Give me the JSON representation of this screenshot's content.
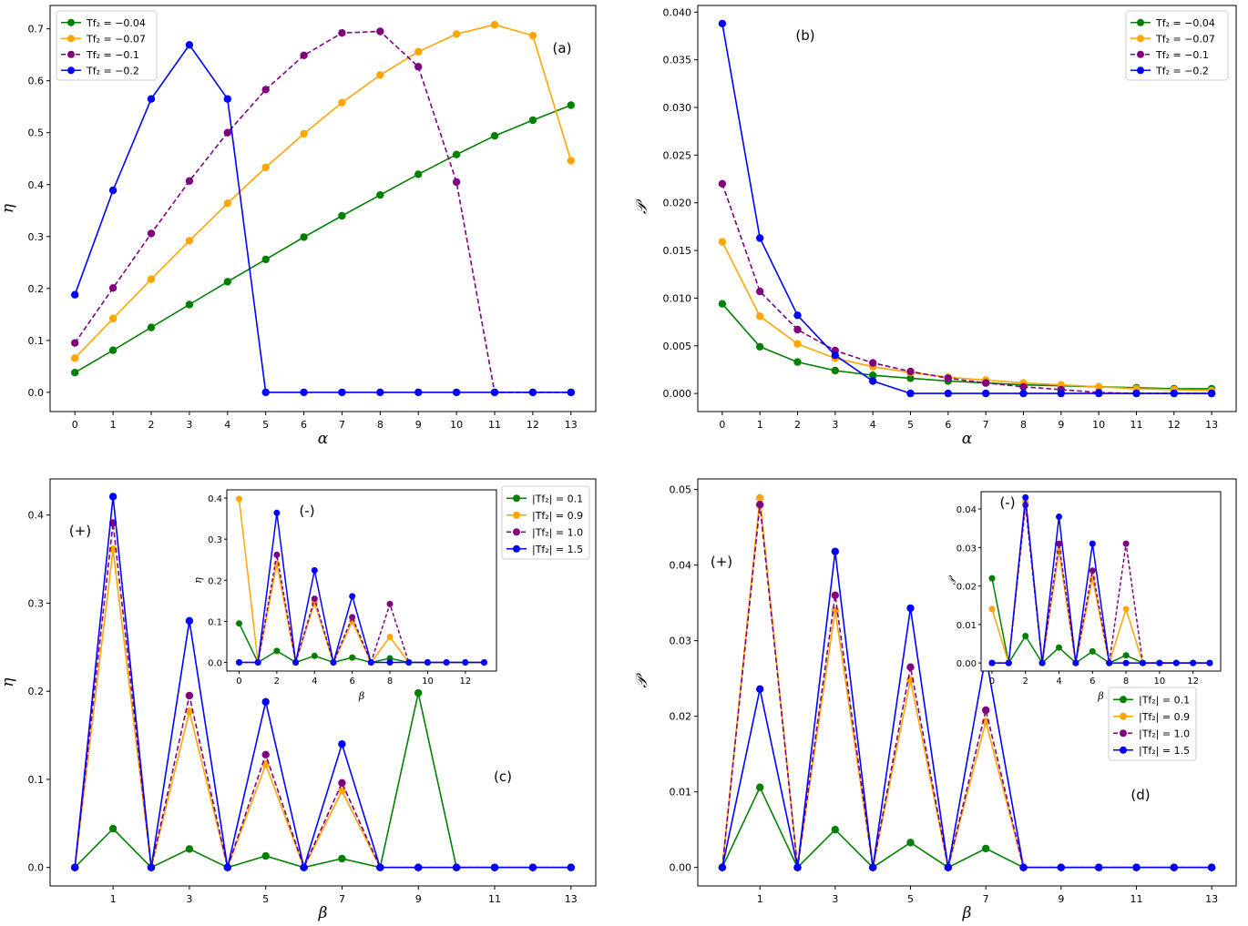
{
  "chart_data": [
    {
      "id": "a",
      "type": "line",
      "annotation": "(a)",
      "xlabel": "α",
      "ylabel": "η",
      "xlim": [
        -0.65,
        13.65
      ],
      "ylim": [
        -0.037,
        0.745
      ],
      "xticks": [
        0,
        1,
        2,
        3,
        4,
        5,
        6,
        7,
        8,
        9,
        10,
        11,
        12,
        13
      ],
      "yticks": [
        0.0,
        0.1,
        0.2,
        0.3,
        0.4,
        0.5,
        0.6,
        0.7
      ],
      "ytick_labels": [
        "0.0",
        "0.1",
        "0.2",
        "0.3",
        "0.4",
        "0.5",
        "0.6",
        "0.7"
      ],
      "legend": "top-left",
      "series": [
        {
          "name": "Tf₂ = −0.04",
          "color": "#008000",
          "dash": false,
          "x": [
            0,
            1,
            2,
            3,
            4,
            5,
            6,
            7,
            8,
            9,
            10,
            11,
            12,
            13
          ],
          "y": [
            0.038,
            0.081,
            0.125,
            0.169,
            0.213,
            0.256,
            0.299,
            0.34,
            0.38,
            0.42,
            0.458,
            0.494,
            0.524,
            0.553
          ]
        },
        {
          "name": "Tf₂ = −0.07",
          "color": "#ffa500",
          "dash": false,
          "x": [
            0,
            1,
            2,
            3,
            4,
            5,
            6,
            7,
            8,
            9,
            10,
            11,
            12,
            13
          ],
          "y": [
            0.066,
            0.142,
            0.218,
            0.292,
            0.364,
            0.433,
            0.498,
            0.558,
            0.611,
            0.656,
            0.69,
            0.708,
            0.687,
            0.446
          ]
        },
        {
          "name": "Tf₂ = −0.1",
          "color": "#800080",
          "dash": true,
          "x": [
            0,
            1,
            2,
            3,
            4,
            5,
            6,
            7,
            8,
            9,
            10,
            11,
            12,
            13
          ],
          "y": [
            0.095,
            0.201,
            0.306,
            0.407,
            0.5,
            0.583,
            0.649,
            0.692,
            0.695,
            0.627,
            0.405,
            0.0,
            0.0,
            0.0
          ]
        },
        {
          "name": "Tf₂ = −0.2",
          "color": "#0000ff",
          "dash": false,
          "x": [
            0,
            1,
            2,
            3,
            4,
            5,
            6,
            7,
            8,
            9,
            10,
            11,
            12,
            13
          ],
          "y": [
            0.188,
            0.389,
            0.565,
            0.669,
            0.565,
            0.0,
            0.0,
            0.0,
            0.0,
            0.0,
            0.0,
            0.0,
            0.0,
            0.0
          ]
        }
      ]
    },
    {
      "id": "b",
      "type": "line",
      "annotation": "(b)",
      "xlabel": "α",
      "ylabel": "𝒫",
      "xlim": [
        -0.65,
        13.65
      ],
      "ylim": [
        -0.0019,
        0.0407
      ],
      "xticks": [
        0,
        1,
        2,
        3,
        4,
        5,
        6,
        7,
        8,
        9,
        10,
        11,
        12,
        13
      ],
      "yticks": [
        0.0,
        0.005,
        0.01,
        0.015,
        0.02,
        0.025,
        0.03,
        0.035,
        0.04
      ],
      "ytick_labels": [
        "0.000",
        "0.005",
        "0.010",
        "0.015",
        "0.020",
        "0.025",
        "0.030",
        "0.035",
        "0.040"
      ],
      "legend": "top-right",
      "series": [
        {
          "name": "Tf₂ = −0.04",
          "color": "#008000",
          "dash": false,
          "x": [
            0,
            1,
            2,
            3,
            4,
            5,
            6,
            7,
            8,
            9,
            10,
            11,
            12,
            13
          ],
          "y": [
            0.0094,
            0.0049,
            0.0033,
            0.0024,
            0.0019,
            0.0016,
            0.0013,
            0.0011,
            0.0009,
            0.0008,
            0.0007,
            0.0006,
            0.0005,
            0.0005
          ]
        },
        {
          "name": "Tf₂ = −0.07",
          "color": "#ffa500",
          "dash": false,
          "x": [
            0,
            1,
            2,
            3,
            4,
            5,
            6,
            7,
            8,
            9,
            10,
            11,
            12,
            13
          ],
          "y": [
            0.0159,
            0.0081,
            0.0052,
            0.0037,
            0.0028,
            0.0022,
            0.0017,
            0.0014,
            0.0011,
            0.0009,
            0.0007,
            0.0005,
            0.0004,
            0.0003
          ]
        },
        {
          "name": "Tf₂ = −0.1",
          "color": "#800080",
          "dash": true,
          "x": [
            0,
            1,
            2,
            3,
            4,
            5,
            6,
            7,
            8,
            9,
            10,
            11,
            12,
            13
          ],
          "y": [
            0.022,
            0.0107,
            0.0067,
            0.0045,
            0.0032,
            0.0023,
            0.0016,
            0.0011,
            0.0007,
            0.0004,
            0.0001,
            0.0,
            0.0,
            0.0
          ]
        },
        {
          "name": "Tf₂ = −0.2",
          "color": "#0000ff",
          "dash": false,
          "x": [
            0,
            1,
            2,
            3,
            4,
            5,
            6,
            7,
            8,
            9,
            10,
            11,
            12,
            13
          ],
          "y": [
            0.0388,
            0.0163,
            0.0082,
            0.004,
            0.0013,
            0.0,
            0.0,
            0.0,
            0.0,
            0.0,
            0.0,
            0.0,
            0.0,
            0.0
          ]
        }
      ]
    },
    {
      "id": "c",
      "type": "line",
      "annotation": "(c)",
      "annotation2": "(+)",
      "xlabel": "β",
      "ylabel": "η",
      "xlim": [
        -0.65,
        13.65
      ],
      "ylim": [
        -0.021,
        0.441
      ],
      "xticks": [
        1,
        3,
        5,
        7,
        9,
        11,
        13
      ],
      "yticks": [
        0.0,
        0.1,
        0.2,
        0.3,
        0.4
      ],
      "ytick_labels": [
        "0.0",
        "0.1",
        "0.2",
        "0.3",
        "0.4"
      ],
      "legend": "top-right",
      "series": [
        {
          "name": "|Tf₂| = 0.1",
          "color": "#008000",
          "dash": false,
          "x": [
            0,
            1,
            2,
            3,
            4,
            5,
            6,
            7,
            8,
            9,
            10,
            11,
            12,
            13
          ],
          "y": [
            0,
            0.044,
            0,
            0.021,
            0,
            0.013,
            0,
            0.01,
            0,
            0.198,
            0,
            0,
            0,
            0
          ]
        },
        {
          "name": "|Tf₂| = 0.9",
          "color": "#ffa500",
          "dash": false,
          "x": [
            0,
            1,
            2,
            3,
            4,
            5,
            6,
            7,
            8,
            9,
            10,
            11,
            12,
            13
          ],
          "y": [
            0,
            0.361,
            0,
            0.177,
            0,
            0.117,
            0,
            0.087,
            0,
            0,
            0,
            0,
            0,
            0
          ]
        },
        {
          "name": "|Tf₂| = 1.0",
          "color": "#800080",
          "dash": true,
          "x": [
            0,
            1,
            2,
            3,
            4,
            5,
            6,
            7,
            8,
            9,
            10,
            11,
            12,
            13
          ],
          "y": [
            0,
            0.391,
            0,
            0.195,
            0,
            0.128,
            0,
            0.096,
            0,
            0,
            0,
            0,
            0,
            0
          ]
        },
        {
          "name": "|Tf₂| = 1.5",
          "color": "#0000ff",
          "dash": false,
          "x": [
            0,
            1,
            2,
            3,
            4,
            5,
            6,
            7,
            8,
            9,
            10,
            11,
            12,
            13
          ],
          "y": [
            0,
            0.421,
            0,
            0.28,
            0,
            0.188,
            0,
            0.14,
            0,
            0,
            0,
            0,
            0,
            0
          ]
        }
      ],
      "inset": {
        "annotation": "(-)",
        "xlabel": "β",
        "ylabel": "η",
        "xlim": [
          -0.65,
          13.65
        ],
        "ylim": [
          -0.021,
          0.42
        ],
        "xticks": [
          0,
          2,
          4,
          6,
          8,
          10,
          12
        ],
        "yticks": [
          0.0,
          0.1,
          0.2,
          0.3,
          0.4
        ],
        "ytick_labels": [
          "0.0",
          "0.1",
          "0.2",
          "0.3",
          "0.4"
        ],
        "series": [
          {
            "color": "#008000",
            "dash": false,
            "x": [
              0,
              1,
              2,
              3,
              4,
              5,
              6,
              7,
              8,
              9,
              10,
              11,
              12,
              13
            ],
            "y": [
              0.095,
              0,
              0.028,
              0,
              0.016,
              0,
              0.012,
              0,
              0.01,
              0,
              0,
              0,
              0,
              0
            ]
          },
          {
            "color": "#ffa500",
            "dash": false,
            "x": [
              0,
              1,
              2,
              3,
              4,
              5,
              6,
              7,
              8,
              9,
              10,
              11,
              12,
              13
            ],
            "y": [
              0.398,
              0,
              0.24,
              0,
              0.145,
              0,
              0.1,
              0,
              0.062,
              0,
              0,
              0,
              0,
              0
            ]
          },
          {
            "color": "#800080",
            "dash": true,
            "x": [
              0,
              1,
              2,
              3,
              4,
              5,
              6,
              7,
              8,
              9,
              10,
              11,
              12,
              13
            ],
            "y": [
              0,
              0,
              0.262,
              0,
              0.155,
              0,
              0.11,
              0,
              0.142,
              0,
              0,
              0,
              0,
              0
            ]
          },
          {
            "color": "#0000ff",
            "dash": false,
            "x": [
              0,
              1,
              2,
              3,
              4,
              5,
              6,
              7,
              8,
              9,
              10,
              11,
              12,
              13
            ],
            "y": [
              0,
              0,
              0.364,
              0,
              0.224,
              0,
              0.161,
              0,
              0,
              0,
              0,
              0,
              0,
              0
            ]
          }
        ]
      }
    },
    {
      "id": "d",
      "type": "line",
      "annotation": "(d)",
      "annotation2": "(+)",
      "xlabel": "β",
      "ylabel": "𝒫",
      "xlim": [
        -0.65,
        13.65
      ],
      "ylim": [
        -0.00245,
        0.0514
      ],
      "xticks": [
        1,
        3,
        5,
        7,
        9,
        11,
        13
      ],
      "yticks": [
        0.0,
        0.01,
        0.02,
        0.03,
        0.04,
        0.05
      ],
      "ytick_labels": [
        "0.00",
        "0.01",
        "0.02",
        "0.03",
        "0.04",
        "0.05"
      ],
      "legend": "center-right",
      "series": [
        {
          "name": "|Tf₂| = 0.1",
          "color": "#008000",
          "dash": false,
          "x": [
            0,
            1,
            2,
            3,
            4,
            5,
            6,
            7,
            8,
            9,
            10,
            11,
            12,
            13
          ],
          "y": [
            0,
            0.0106,
            0,
            0.005,
            0,
            0.0033,
            0,
            0.0025,
            0,
            0,
            0,
            0,
            0,
            0
          ]
        },
        {
          "name": "|Tf₂| = 0.9",
          "color": "#ffa500",
          "dash": false,
          "x": [
            0,
            1,
            2,
            3,
            4,
            5,
            6,
            7,
            8,
            9,
            10,
            11,
            12,
            13
          ],
          "y": [
            0,
            0.0489,
            0,
            0.034,
            0,
            0.0248,
            0,
            0.0193,
            0,
            0,
            0,
            0,
            0,
            0
          ]
        },
        {
          "name": "|Tf₂| = 1.0",
          "color": "#800080",
          "dash": true,
          "x": [
            0,
            1,
            2,
            3,
            4,
            5,
            6,
            7,
            8,
            9,
            10,
            11,
            12,
            13
          ],
          "y": [
            0,
            0.048,
            0,
            0.036,
            0,
            0.0265,
            0,
            0.0208,
            0,
            0,
            0,
            0,
            0,
            0
          ]
        },
        {
          "name": "|Tf₂| = 1.5",
          "color": "#0000ff",
          "dash": false,
          "x": [
            0,
            1,
            2,
            3,
            4,
            5,
            6,
            7,
            8,
            9,
            10,
            11,
            12,
            13
          ],
          "y": [
            0,
            0.0236,
            0,
            0.0418,
            0,
            0.0343,
            0,
            0.028,
            0,
            0,
            0,
            0,
            0,
            0
          ]
        }
      ],
      "inset": {
        "annotation": "(-)",
        "xlabel": "β",
        "ylabel": "𝒫",
        "xlim": [
          -0.65,
          13.65
        ],
        "ylim": [
          -0.0021,
          0.0445
        ],
        "xticks": [
          0,
          2,
          4,
          6,
          8,
          10,
          12
        ],
        "yticks": [
          0.0,
          0.01,
          0.02,
          0.03,
          0.04
        ],
        "ytick_labels": [
          "0.00",
          "0.01",
          "0.02",
          "0.03",
          "0.04"
        ],
        "series": [
          {
            "color": "#008000",
            "dash": false,
            "x": [
              0,
              1,
              2,
              3,
              4,
              5,
              6,
              7,
              8,
              9,
              10,
              11,
              12,
              13
            ],
            "y": [
              0.022,
              0,
              0.007,
              0,
              0.004,
              0,
              0.003,
              0,
              0.002,
              0,
              0,
              0,
              0,
              0
            ]
          },
          {
            "color": "#ffa500",
            "dash": false,
            "x": [
              0,
              1,
              2,
              3,
              4,
              5,
              6,
              7,
              8,
              9,
              10,
              11,
              12,
              13
            ],
            "y": [
              0.014,
              0,
              0.042,
              0,
              0.029,
              0,
              0.022,
              0,
              0.014,
              0,
              0,
              0,
              0,
              0
            ]
          },
          {
            "color": "#800080",
            "dash": true,
            "x": [
              0,
              1,
              2,
              3,
              4,
              5,
              6,
              7,
              8,
              9,
              10,
              11,
              12,
              13
            ],
            "y": [
              0,
              0,
              0.041,
              0,
              0.031,
              0,
              0.024,
              0,
              0.031,
              0,
              0,
              0,
              0,
              0
            ]
          },
          {
            "color": "#0000ff",
            "dash": false,
            "x": [
              0,
              1,
              2,
              3,
              4,
              5,
              6,
              7,
              8,
              9,
              10,
              11,
              12,
              13
            ],
            "y": [
              0,
              0,
              0.043,
              0,
              0.038,
              0,
              0.031,
              0,
              0,
              0,
              0,
              0,
              0,
              0
            ]
          }
        ]
      }
    }
  ]
}
